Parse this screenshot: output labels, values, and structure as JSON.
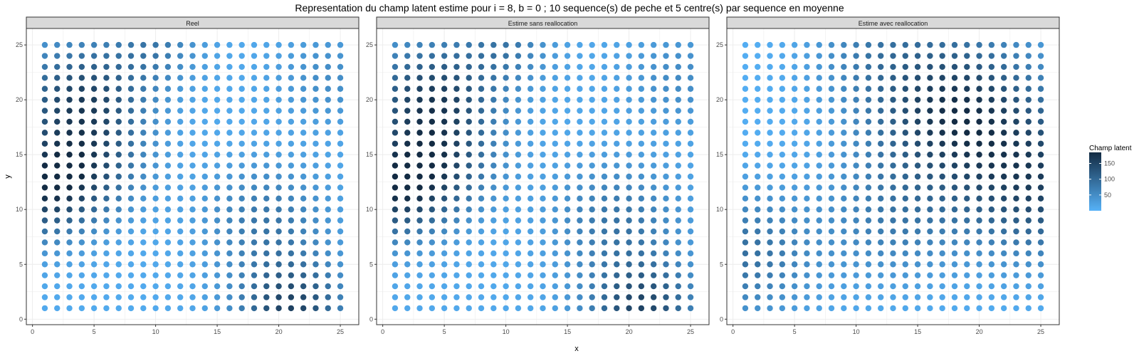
{
  "title": "Representation du champ latent estime pour i = 8, b = 0 ; 10 sequence(s) de peche et 5 centre(s) par sequence en moyenne",
  "x_axis_label": "x",
  "y_axis_label": "y",
  "legend": {
    "title": "Champ latent",
    "breaks": [
      50,
      100,
      150
    ],
    "break_labels": [
      "50",
      "100",
      "150"
    ],
    "range": [
      0,
      185
    ],
    "color_low": "#56B1F7",
    "color_high": "#132B43",
    "placement": "right"
  },
  "colors": {
    "strip_fill": "#d9d9d9",
    "panel_border": "#333333",
    "grid_line": "#ebebeb"
  },
  "chart_data": {
    "type": "scatter",
    "grid": true,
    "shared_axes": {
      "xlim": [
        -0.5,
        26.5
      ],
      "ylim": [
        -0.5,
        26.5
      ],
      "x_ticks": [
        0,
        5,
        10,
        15,
        20,
        25
      ],
      "y_ticks": [
        0,
        5,
        10,
        15,
        20,
        25
      ]
    },
    "point_grid": {
      "x": [
        1,
        25
      ],
      "y": [
        1,
        25
      ],
      "step": 1
    },
    "value_model": "sum of gaussian bumps: base + sum(amp * exp(-((x-cx)^2 + (y-cy)^2) / (2*s^2)))",
    "panels": [
      {
        "name": "Reel",
        "base": 10,
        "bumps": [
          {
            "cx": 1,
            "cy": 12,
            "amp": 150,
            "s": 3.2
          },
          {
            "cx": 4,
            "cy": 20,
            "amp": 140,
            "s": 3.5
          },
          {
            "cx": 5,
            "cy": 14,
            "amp": 70,
            "s": 3.0
          },
          {
            "cx": 21,
            "cy": 1,
            "amp": 140,
            "s": 3.0
          },
          {
            "cx": 19,
            "cy": 9,
            "amp": 70,
            "s": 3.5
          },
          {
            "cx": 10,
            "cy": 25,
            "amp": 60,
            "s": 2.5
          },
          {
            "cx": 24,
            "cy": 22,
            "amp": 40,
            "s": 3.0
          }
        ]
      },
      {
        "name": "Estime sans reallocation",
        "base": 12,
        "bumps": [
          {
            "cx": 1,
            "cy": 12,
            "amp": 150,
            "s": 3.2
          },
          {
            "cx": 4,
            "cy": 20,
            "amp": 145,
            "s": 3.5
          },
          {
            "cx": 5,
            "cy": 14,
            "amp": 75,
            "s": 3.0
          },
          {
            "cx": 21,
            "cy": 1,
            "amp": 135,
            "s": 3.0
          },
          {
            "cx": 19,
            "cy": 9,
            "amp": 70,
            "s": 3.5
          },
          {
            "cx": 10,
            "cy": 25,
            "amp": 60,
            "s": 2.5
          },
          {
            "cx": 24,
            "cy": 22,
            "amp": 40,
            "s": 3.0
          }
        ]
      },
      {
        "name": "Estime avec reallocation",
        "base": 4,
        "bumps": [
          {
            "cx": 18,
            "cy": 19,
            "amp": 165,
            "s": 5.0
          },
          {
            "cx": 25,
            "cy": 12,
            "amp": 130,
            "s": 4.5
          },
          {
            "cx": 1,
            "cy": 6,
            "amp": 85,
            "s": 4.0
          },
          {
            "cx": 13,
            "cy": 9,
            "amp": 60,
            "s": 4.0
          },
          {
            "cx": 11,
            "cy": 25,
            "amp": 45,
            "s": 3.5
          }
        ]
      }
    ]
  }
}
